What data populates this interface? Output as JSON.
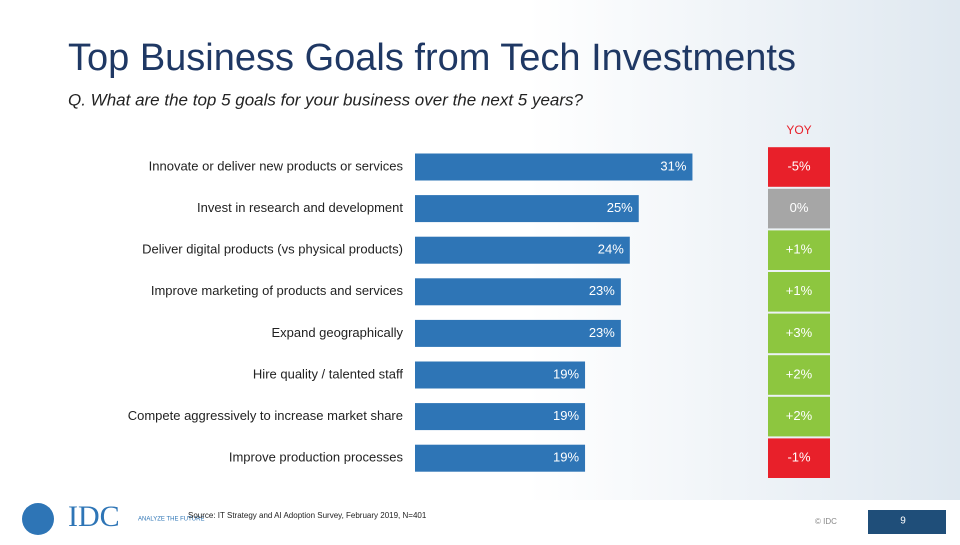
{
  "chart_data": {
    "type": "bar",
    "orientation": "horizontal",
    "title": "Top Business Goals from Tech Investments",
    "subtitle": "Q. What are the top 5 goals for your business over the next 5 years?",
    "categories": [
      "Innovate or deliver new products or services",
      "Invest in research and development",
      "Deliver digital products (vs physical products)",
      "Improve marketing of products and services",
      "Expand geographically",
      "Hire quality / talented staff",
      "Compete aggressively to increase market share",
      "Improve production processes"
    ],
    "values": [
      31,
      25,
      24,
      23,
      23,
      19,
      19,
      19
    ],
    "value_labels": [
      "31%",
      "25%",
      "24%",
      "23%",
      "23%",
      "19%",
      "19%",
      "19%"
    ],
    "color": "#2e75b6",
    "yoy": {
      "name": "YOY",
      "values": [
        -5,
        0,
        1,
        1,
        3,
        2,
        2,
        -1
      ],
      "value_labels": [
        "-5%",
        "0%",
        "+1%",
        "+1%",
        "+3%",
        "+2%",
        "+2%",
        "-1%"
      ],
      "colors": [
        "#e8202a",
        "#a6a6a6",
        "#8dc63f",
        "#8dc63f",
        "#8dc63f",
        "#8dc63f",
        "#8dc63f",
        "#e8202a"
      ]
    },
    "source": "Source: IT Strategy and AI Adoption Survey, February 2019, N=401"
  },
  "footer": {
    "logo": "IDC",
    "tagline": "ANALYZE THE FUTURE",
    "copyright": "© IDC",
    "page_number": "9"
  }
}
